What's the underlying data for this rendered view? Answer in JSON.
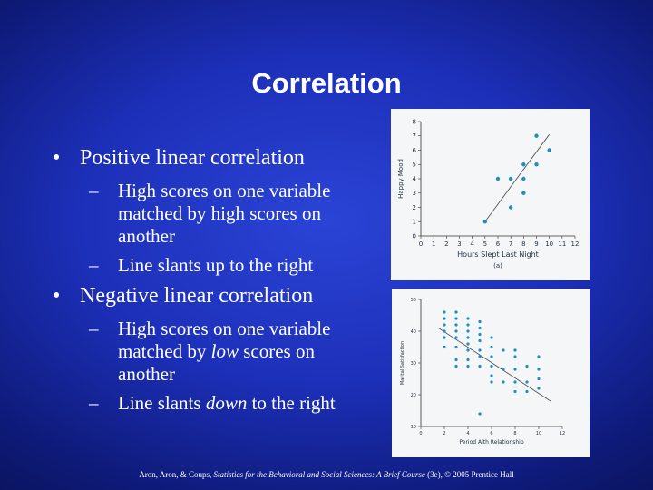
{
  "title": "Correlation",
  "bullets": [
    {
      "label": "Positive linear correlation",
      "sub": [
        {
          "pre": "High scores on one variable matched by high scores on another",
          "em": "",
          "post": ""
        },
        {
          "pre": "Line slants up to the right",
          "em": "",
          "post": ""
        }
      ]
    },
    {
      "label": "Negative linear correlation",
      "sub": [
        {
          "pre": "High scores on one variable matched by ",
          "em": "low",
          "post": " scores on another"
        },
        {
          "pre": "Line slants ",
          "em": "down",
          "post": " to the right"
        }
      ]
    }
  ],
  "bullet_symbol": "•",
  "dash_symbol": "–",
  "footer": {
    "pre": "Aron, Aron, & Coups, ",
    "em": "Statistics for the Behavioral and Social Sciences: A Brief Course",
    "post": " (3e), © 2005 Prentice Hall"
  },
  "colors": {
    "background": "#1c2fb8",
    "point": "#1a8fc8",
    "line": "#555555",
    "chart_bg": "#f4f6f8"
  },
  "chart_data": [
    {
      "type": "scatter",
      "xlabel": "Hours Slept Last Night",
      "ylabel": "Happy Mood",
      "x_ticks": [
        "0",
        "1",
        "2",
        "3",
        "4",
        "5",
        "6",
        "7",
        "8",
        "9",
        "10",
        "11",
        "12"
      ],
      "y_ticks": [
        "0",
        "1",
        "2",
        "3",
        "4",
        "5",
        "6",
        "7",
        "8"
      ],
      "xlim": [
        0,
        12
      ],
      "ylim": [
        0,
        8
      ],
      "footnote": "(a)",
      "points": [
        [
          5,
          1
        ],
        [
          7,
          2
        ],
        [
          6,
          4
        ],
        [
          7,
          4
        ],
        [
          8,
          4
        ],
        [
          8,
          3
        ],
        [
          8,
          5
        ],
        [
          9,
          5
        ],
        [
          9,
          7
        ],
        [
          10,
          6
        ]
      ],
      "trend_line": [
        [
          5,
          1
        ],
        [
          10,
          7.1
        ]
      ]
    },
    {
      "type": "scatter",
      "xlabel": "Period Alth Relationship",
      "ylabel": "Marital Satisfaction",
      "x_ticks": [
        "0",
        "2",
        "4",
        "6",
        "8",
        "10",
        "12"
      ],
      "y_ticks": [
        "10",
        "20",
        "30",
        "40",
        "50"
      ],
      "xlim": [
        0,
        12
      ],
      "ylim": [
        10,
        50
      ],
      "points": [
        [
          2,
          46
        ],
        [
          2,
          44
        ],
        [
          2,
          42
        ],
        [
          2,
          40
        ],
        [
          2,
          38
        ],
        [
          2,
          35
        ],
        [
          3,
          46
        ],
        [
          3,
          44
        ],
        [
          3,
          42
        ],
        [
          3,
          40
        ],
        [
          3,
          38
        ],
        [
          3,
          35
        ],
        [
          3,
          31
        ],
        [
          3,
          29
        ],
        [
          4,
          44
        ],
        [
          4,
          42
        ],
        [
          4,
          40
        ],
        [
          4,
          38
        ],
        [
          4,
          36
        ],
        [
          4,
          34
        ],
        [
          4,
          31
        ],
        [
          4,
          29
        ],
        [
          5,
          43
        ],
        [
          5,
          41
        ],
        [
          5,
          39
        ],
        [
          5,
          37
        ],
        [
          5,
          34
        ],
        [
          5,
          32
        ],
        [
          5,
          29
        ],
        [
          5,
          14
        ],
        [
          6,
          38
        ],
        [
          6,
          35
        ],
        [
          6,
          32
        ],
        [
          6,
          29
        ],
        [
          6,
          26
        ],
        [
          6,
          24
        ],
        [
          7,
          34
        ],
        [
          7,
          28
        ],
        [
          7,
          24
        ],
        [
          8,
          34
        ],
        [
          8,
          32
        ],
        [
          8,
          28
        ],
        [
          8,
          24
        ],
        [
          8,
          21
        ],
        [
          9,
          29
        ],
        [
          9,
          24
        ],
        [
          9,
          21
        ],
        [
          10,
          32
        ],
        [
          10,
          28
        ],
        [
          10,
          25
        ],
        [
          10,
          22
        ]
      ],
      "trend_line": [
        [
          1.5,
          41
        ],
        [
          11,
          18
        ]
      ]
    }
  ]
}
